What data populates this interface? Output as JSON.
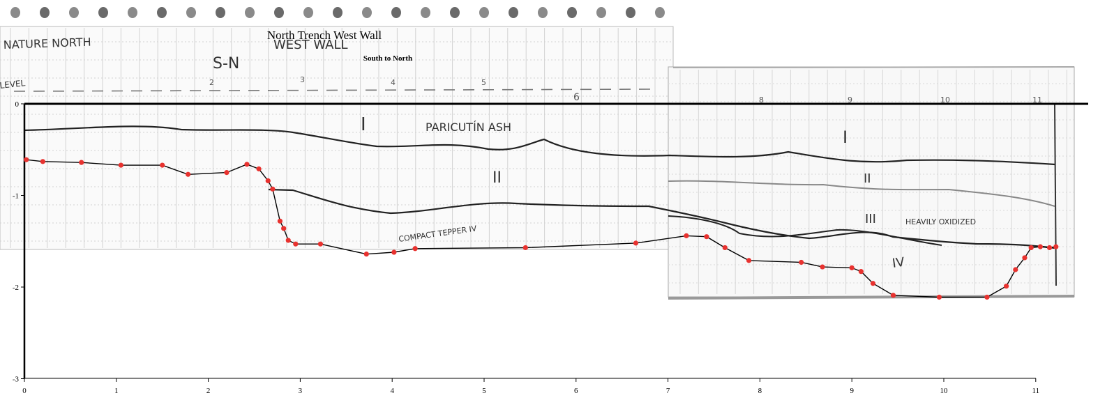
{
  "chart_data": {
    "type": "line",
    "title": "North Trench West Wall",
    "subtitle": "South to North",
    "xlim": [
      0,
      11
    ],
    "ylim": [
      -3,
      0
    ],
    "x_ticks": [
      "0",
      "1",
      "2",
      "3",
      "4",
      "5",
      "6",
      "7",
      "8",
      "9",
      "10",
      "11"
    ],
    "y_ticks": [
      "0",
      "-1",
      "-2",
      "-3"
    ],
    "grid": false,
    "legend": "none",
    "series": [
      {
        "color": "#e8322f",
        "x": [
          0.02,
          0.2,
          0.62,
          1.05,
          1.5,
          1.78,
          2.2,
          2.42,
          2.55,
          2.65,
          2.7,
          2.78,
          2.82,
          2.87,
          2.95,
          3.22,
          3.72,
          4.02,
          4.25,
          5.45,
          6.65,
          7.2,
          7.42,
          7.62,
          7.88,
          8.45,
          8.68,
          9.0,
          9.1,
          9.23,
          9.45,
          9.95,
          10.47,
          10.68,
          10.78,
          10.88,
          10.95,
          11.05,
          11.15,
          11.22
        ],
        "y": [
          -0.61,
          -0.63,
          -0.64,
          -0.67,
          -0.67,
          -0.77,
          -0.75,
          -0.66,
          -0.71,
          -0.84,
          -0.93,
          -1.28,
          -1.36,
          -1.49,
          -1.53,
          -1.53,
          -1.64,
          -1.62,
          -1.58,
          -1.57,
          -1.52,
          -1.44,
          -1.45,
          -1.57,
          -1.71,
          -1.73,
          -1.78,
          -1.79,
          -1.83,
          -1.96,
          -2.09,
          -2.11,
          -2.11,
          -1.99,
          -1.81,
          -1.68,
          -1.57,
          -1.56,
          -1.57,
          -1.56
        ]
      }
    ],
    "annotations": [
      "I",
      "PARICUTÍN ASH",
      "II",
      "COMPACT TEPPER IV",
      "III",
      "HEAVILY OXIDIZED",
      "IV",
      "NATURE NORTH",
      "S-N",
      "WEST WALL",
      "LEVEL"
    ]
  }
}
